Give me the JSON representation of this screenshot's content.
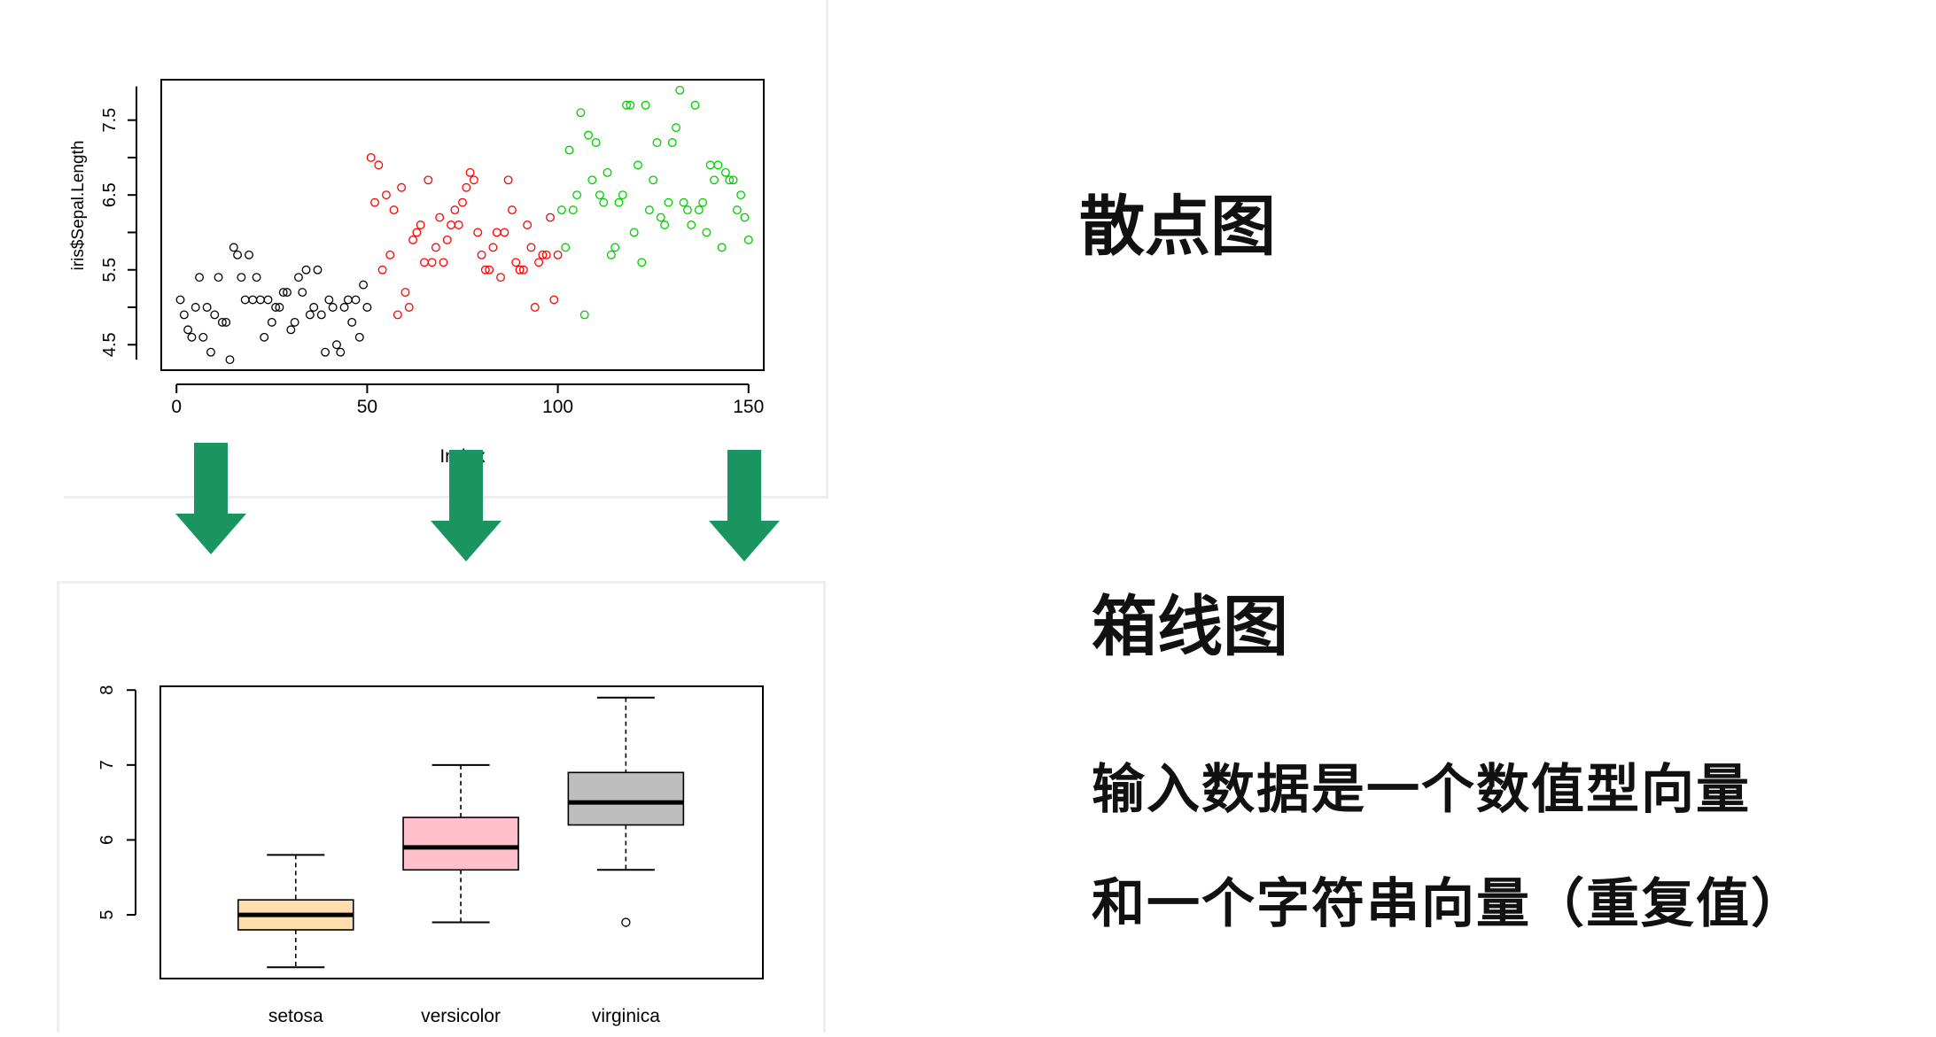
{
  "chart_data": [
    {
      "type": "scatter",
      "ylabel": "iris$Sepal.Length",
      "xlabel": "Index",
      "xticks": [
        "0",
        "50",
        "100",
        "150"
      ],
      "yticks": [
        "4.5",
        "5.5",
        "6.5",
        "7.5"
      ],
      "xlim": [
        0,
        150
      ],
      "ylim": [
        4.3,
        7.9
      ],
      "series": [
        {
          "color": "#000000",
          "x_start": 1,
          "values": [
            5.1,
            4.9,
            4.7,
            4.6,
            5.0,
            5.4,
            4.6,
            5.0,
            4.4,
            4.9,
            5.4,
            4.8,
            4.8,
            4.3,
            5.8,
            5.7,
            5.4,
            5.1,
            5.7,
            5.1,
            5.4,
            5.1,
            4.6,
            5.1,
            4.8,
            5.0,
            5.0,
            5.2,
            5.2,
            4.7,
            4.8,
            5.4,
            5.2,
            5.5,
            4.9,
            5.0,
            5.5,
            4.9,
            4.4,
            5.1,
            5.0,
            4.5,
            4.4,
            5.0,
            5.1,
            4.8,
            5.1,
            4.6,
            5.3,
            5.0
          ]
        },
        {
          "color": "#ff0000",
          "x_start": 51,
          "values": [
            7.0,
            6.4,
            6.9,
            5.5,
            6.5,
            5.7,
            6.3,
            4.9,
            6.6,
            5.2,
            5.0,
            5.9,
            6.0,
            6.1,
            5.6,
            6.7,
            5.6,
            5.8,
            6.2,
            5.6,
            5.9,
            6.1,
            6.3,
            6.1,
            6.4,
            6.6,
            6.8,
            6.7,
            6.0,
            5.7,
            5.5,
            5.5,
            5.8,
            6.0,
            5.4,
            6.0,
            6.7,
            6.3,
            5.6,
            5.5,
            5.5,
            6.1,
            5.8,
            5.0,
            5.6,
            5.7,
            5.7,
            6.2,
            5.1,
            5.7
          ]
        },
        {
          "color": "#00cd00",
          "x_start": 101,
          "values": [
            6.3,
            5.8,
            7.1,
            6.3,
            6.5,
            7.6,
            4.9,
            7.3,
            6.7,
            7.2,
            6.5,
            6.4,
            6.8,
            5.7,
            5.8,
            6.4,
            6.5,
            7.7,
            7.7,
            6.0,
            6.9,
            5.6,
            7.7,
            6.3,
            6.7,
            7.2,
            6.2,
            6.1,
            6.4,
            7.2,
            7.4,
            7.9,
            6.4,
            6.3,
            6.1,
            7.7,
            6.3,
            6.4,
            6.0,
            6.9,
            6.7,
            6.9,
            5.8,
            6.8,
            6.7,
            6.7,
            6.3,
            6.5,
            6.2,
            5.9
          ]
        }
      ]
    },
    {
      "type": "box",
      "categories": [
        "setosa",
        "versicolor",
        "virginica"
      ],
      "yticks": [
        "5",
        "6",
        "7",
        "8"
      ],
      "ylim": [
        4.3,
        8.0
      ],
      "boxes": [
        {
          "min": 4.3,
          "q1": 4.8,
          "median": 5.0,
          "q3": 5.2,
          "max": 5.8,
          "outliers": [],
          "fill": "#ffdead"
        },
        {
          "min": 4.9,
          "q1": 5.6,
          "median": 5.9,
          "q3": 6.3,
          "max": 7.0,
          "outliers": [],
          "fill": "#ffc0cb"
        },
        {
          "min": 5.6,
          "q1": 6.2,
          "median": 6.5,
          "q3": 6.9,
          "max": 7.9,
          "outliers": [
            4.9
          ],
          "fill": "#bebebe"
        }
      ]
    }
  ],
  "headings": {
    "scatter": "散点图",
    "box": "箱线图"
  },
  "description": {
    "line1": "输入数据是一个数值型向量",
    "line2": "和一个字符串向量（重复值）"
  },
  "colors": {
    "arrow": "#1a9460"
  }
}
